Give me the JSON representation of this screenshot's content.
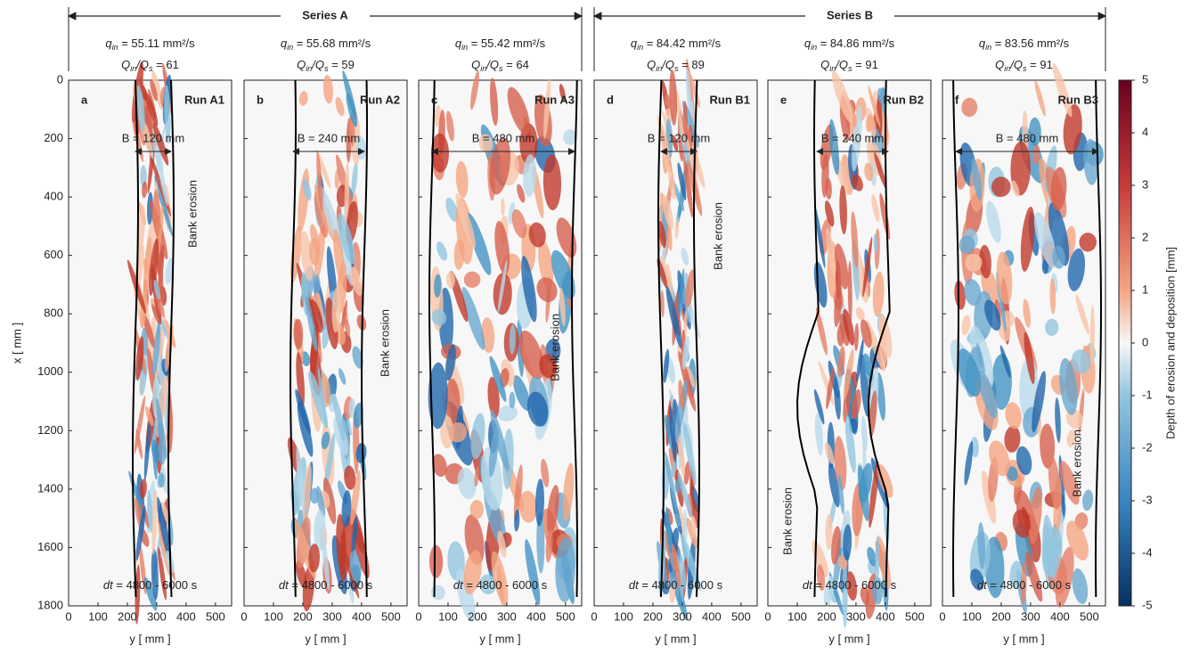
{
  "figure": {
    "series": [
      {
        "label": "Series A"
      },
      {
        "label": "Series B"
      }
    ],
    "symbols": {
      "q": "q",
      "in": "in",
      "Q": "Q",
      "s": "s",
      "slash": "/",
      "dt": "dt",
      "annotation": "Bank erosion"
    },
    "panels": [
      {
        "letter": "a",
        "run": "Run A1",
        "q_value": " = 55.11 mm²/s",
        "ratio_value": " = 61",
        "width": "B = 120 mm",
        "dt_value": " = 4800 - 6000 s"
      },
      {
        "letter": "b",
        "run": "Run A2",
        "q_value": " = 55.68 mm²/s",
        "ratio_value": " = 59",
        "width": "B = 240 mm",
        "dt_value": " = 4800 - 6000 s"
      },
      {
        "letter": "c",
        "run": "Run A3",
        "q_value": " = 55.42 mm²/s",
        "ratio_value": " = 64",
        "width": "B = 480 mm",
        "dt_value": " = 4800 - 6000 s"
      },
      {
        "letter": "d",
        "run": "Run B1",
        "q_value": " = 84.42 mm²/s",
        "ratio_value": " = 89",
        "width": "B = 120 mm",
        "dt_value": " = 4800 - 6000 s"
      },
      {
        "letter": "e",
        "run": "Run B2",
        "q_value": " = 84.86 mm²/s",
        "ratio_value": " = 91",
        "width": "B = 240 mm",
        "dt_value": " = 4800 - 6000 s"
      },
      {
        "letter": "f",
        "run": "Run B3",
        "q_value": " = 83.56 mm²/s",
        "ratio_value": " = 91",
        "width": "B = 480 mm",
        "dt_value": " = 4800 - 6000 s"
      }
    ],
    "y_axis": {
      "label": "y [ mm ]",
      "lim": [
        0,
        555
      ],
      "ticks": [
        0,
        100,
        200,
        300,
        400,
        500
      ]
    },
    "x_axis": {
      "label": "x [ mm ]",
      "lim": [
        0,
        1800
      ],
      "ticks": [
        0,
        200,
        400,
        600,
        800,
        1000,
        1200,
        1400,
        1600,
        1800
      ]
    },
    "colorbar": {
      "label": "Depth of erosion and deposition [mm]",
      "lim": [
        -5,
        5
      ],
      "ticks": [
        5,
        4,
        3,
        2,
        1,
        0,
        -1,
        -2,
        -3,
        -4,
        -5
      ]
    }
  }
}
